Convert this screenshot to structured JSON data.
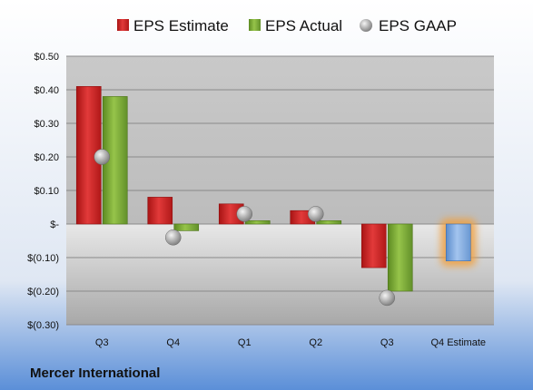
{
  "chart_data": {
    "type": "bar",
    "categories": [
      "Q3",
      "Q4",
      "Q1",
      "Q2",
      "Q3",
      "Q4 Estimate"
    ],
    "series": [
      {
        "name": "EPS Estimate",
        "values": [
          0.41,
          0.08,
          0.06,
          0.04,
          -0.13,
          null
        ]
      },
      {
        "name": "EPS Actual",
        "values": [
          0.38,
          -0.02,
          0.01,
          0.01,
          -0.2,
          null
        ]
      },
      {
        "name": "EPS GAAP",
        "values": [
          0.2,
          -0.04,
          0.03,
          0.03,
          -0.22,
          null
        ]
      }
    ],
    "forecast": {
      "category": "Q4 Estimate",
      "value": -0.11
    },
    "y_ticks": [
      {
        "value": 0.5,
        "label": "$0.50"
      },
      {
        "value": 0.4,
        "label": "$0.40"
      },
      {
        "value": 0.3,
        "label": "$0.30"
      },
      {
        "value": 0.2,
        "label": "$0.20"
      },
      {
        "value": 0.1,
        "label": "$0.10"
      },
      {
        "value": 0,
        "label": "$-"
      },
      {
        "value": -0.1,
        "label": "$(0.10)"
      },
      {
        "value": -0.2,
        "label": "$(0.20)"
      },
      {
        "value": -0.3,
        "label": "$(0.30)"
      }
    ],
    "ylim": [
      -0.3,
      0.5
    ],
    "grid": true,
    "legend_position": "top",
    "footer": "Mercer International",
    "title": "",
    "xlabel": "",
    "ylabel": "",
    "colors": {
      "estimate": "#cc1f1f",
      "actual": "#77a832",
      "gaap": "#a8a8a8",
      "forecast": "#7aa6dc",
      "forecast_glow": "#f0a040",
      "plot_bg": "#c4c4c4",
      "page_bg_top": "#ffffff",
      "page_bg_bottom": "#5b8fd8"
    }
  }
}
